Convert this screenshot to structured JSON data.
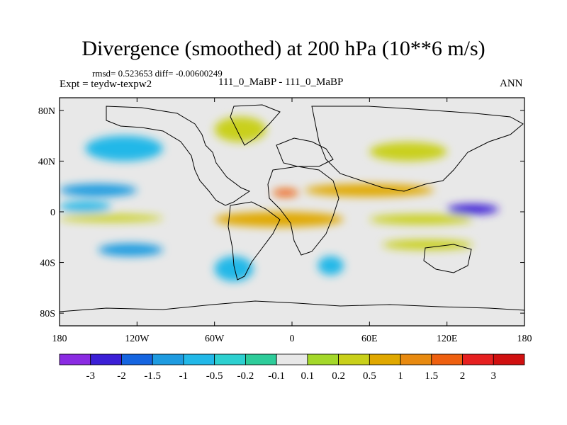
{
  "chart_data": {
    "type": "heatmap",
    "title": "Divergence (smoothed) at 200 hPa (10**6 m/s)",
    "stats": "rmsd= 0.523653 diff= -0.00600249",
    "expt": "Expt = teydw-texpw2",
    "case": "111_0_MaBP - 111_0_MaBP",
    "season": "ANN",
    "xaxis": {
      "range": [
        -180,
        180
      ],
      "ticks": [
        -180,
        -120,
        -60,
        0,
        60,
        120,
        180
      ],
      "tick_labels": [
        "180",
        "120W",
        "60W",
        "0",
        "60E",
        "120E",
        "180"
      ]
    },
    "yaxis": {
      "range": [
        -90,
        90
      ],
      "ticks": [
        80,
        40,
        0,
        -40,
        -80
      ],
      "tick_labels": [
        "80N",
        "40N",
        "0",
        "40S",
        "80S"
      ]
    },
    "colorbar": {
      "labels": [
        "-3",
        "-2",
        "-1.5",
        "-1",
        "-0.5",
        "-0.2",
        "-0.1",
        "0.1",
        "0.2",
        "0.5",
        "1",
        "1.5",
        "2",
        "3"
      ],
      "colors": [
        "#8a2be2",
        "#3b1fd6",
        "#1565e0",
        "#1e9be0",
        "#22b8e8",
        "#2dd0d0",
        "#2ecc9a",
        "#e8e8e8",
        "#a4d82a",
        "#c9d01a",
        "#e0a800",
        "#e88a10",
        "#ee6010",
        "#e62020",
        "#d01010"
      ]
    },
    "features": [
      {
        "lon": [
          -180,
          -120
        ],
        "lat": [
          12,
          22
        ],
        "level": -1
      },
      {
        "lon": [
          -180,
          -140
        ],
        "lat": [
          0,
          8
        ],
        "level": -0.5
      },
      {
        "lon": [
          -180,
          -100
        ],
        "lat": [
          -8,
          -2
        ],
        "level": 0.5
      },
      {
        "lon": [
          -60,
          40
        ],
        "lat": [
          -12,
          0
        ],
        "level": 1
      },
      {
        "lon": [
          -15,
          5
        ],
        "lat": [
          12,
          18
        ],
        "level": 2
      },
      {
        "lon": [
          10,
          110
        ],
        "lat": [
          12,
          22
        ],
        "level": 1
      },
      {
        "lon": [
          120,
          160
        ],
        "lat": [
          -2,
          6
        ],
        "level": -2
      },
      {
        "lon": [
          60,
          140
        ],
        "lat": [
          -10,
          -2
        ],
        "level": 0.5
      },
      {
        "lon": [
          70,
          140
        ],
        "lat": [
          -30,
          -22
        ],
        "level": 0.5
      },
      {
        "lon": [
          -150,
          -100
        ],
        "lat": [
          -35,
          -25
        ],
        "level": -1
      },
      {
        "lon": [
          -60,
          -30
        ],
        "lat": [
          -55,
          -35
        ],
        "level": -0.5
      },
      {
        "lon": [
          20,
          40
        ],
        "lat": [
          -50,
          -35
        ],
        "level": -0.5
      },
      {
        "lon": [
          -160,
          -100
        ],
        "lat": [
          40,
          60
        ],
        "level": -0.5
      },
      {
        "lon": [
          60,
          120
        ],
        "lat": [
          40,
          55
        ],
        "level": 0.5
      },
      {
        "lon": [
          -60,
          -20
        ],
        "lat": [
          55,
          75
        ],
        "level": 0.5
      }
    ]
  }
}
